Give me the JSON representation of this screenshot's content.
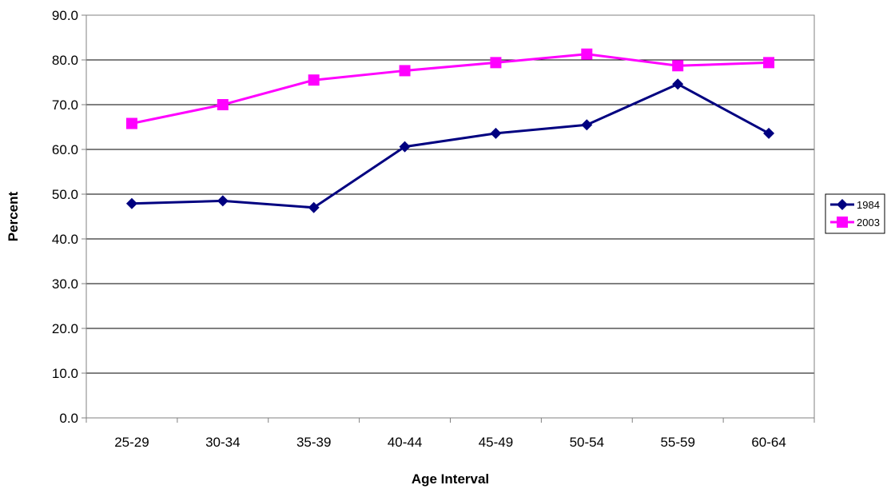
{
  "chart_data": {
    "type": "line",
    "title": "",
    "xlabel": "Age Interval",
    "ylabel": "Percent",
    "categories": [
      "25-29",
      "30-34",
      "35-39",
      "40-44",
      "45-49",
      "50-54",
      "55-59",
      "60-64"
    ],
    "ylim": [
      0,
      90
    ],
    "yticks": [
      "0.0",
      "10.0",
      "20.0",
      "30.0",
      "40.0",
      "50.0",
      "60.0",
      "70.0",
      "80.0",
      "90.0"
    ],
    "grid": true,
    "legend_position": "right",
    "series": [
      {
        "name": "1984",
        "color": "#000080",
        "marker": "diamond",
        "values": [
          47.9,
          48.5,
          47.0,
          60.6,
          63.6,
          65.5,
          74.6,
          63.6
        ]
      },
      {
        "name": "2003",
        "color": "#FF00FF",
        "marker": "square",
        "values": [
          65.8,
          70.0,
          75.5,
          77.6,
          79.4,
          81.3,
          78.7,
          79.4
        ]
      }
    ]
  }
}
